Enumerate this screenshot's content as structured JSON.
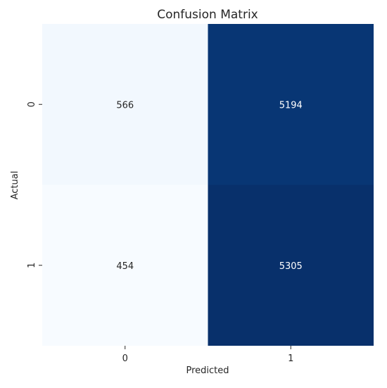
{
  "chart_data": {
    "type": "heatmap",
    "title": "Confusion Matrix",
    "xlabel": "Predicted",
    "ylabel": "Actual",
    "x_categories": [
      "0",
      "1"
    ],
    "y_categories": [
      "0",
      "1"
    ],
    "matrix": [
      [
        566,
        5194
      ],
      [
        454,
        5305
      ]
    ],
    "colormap": "Blues",
    "colorbar": false,
    "annotations": true,
    "grid": false,
    "colors": {
      "low": "#f7fbff",
      "high": "#08306b",
      "annotation_light": "#ffffff",
      "annotation_dark": "#262626"
    }
  }
}
